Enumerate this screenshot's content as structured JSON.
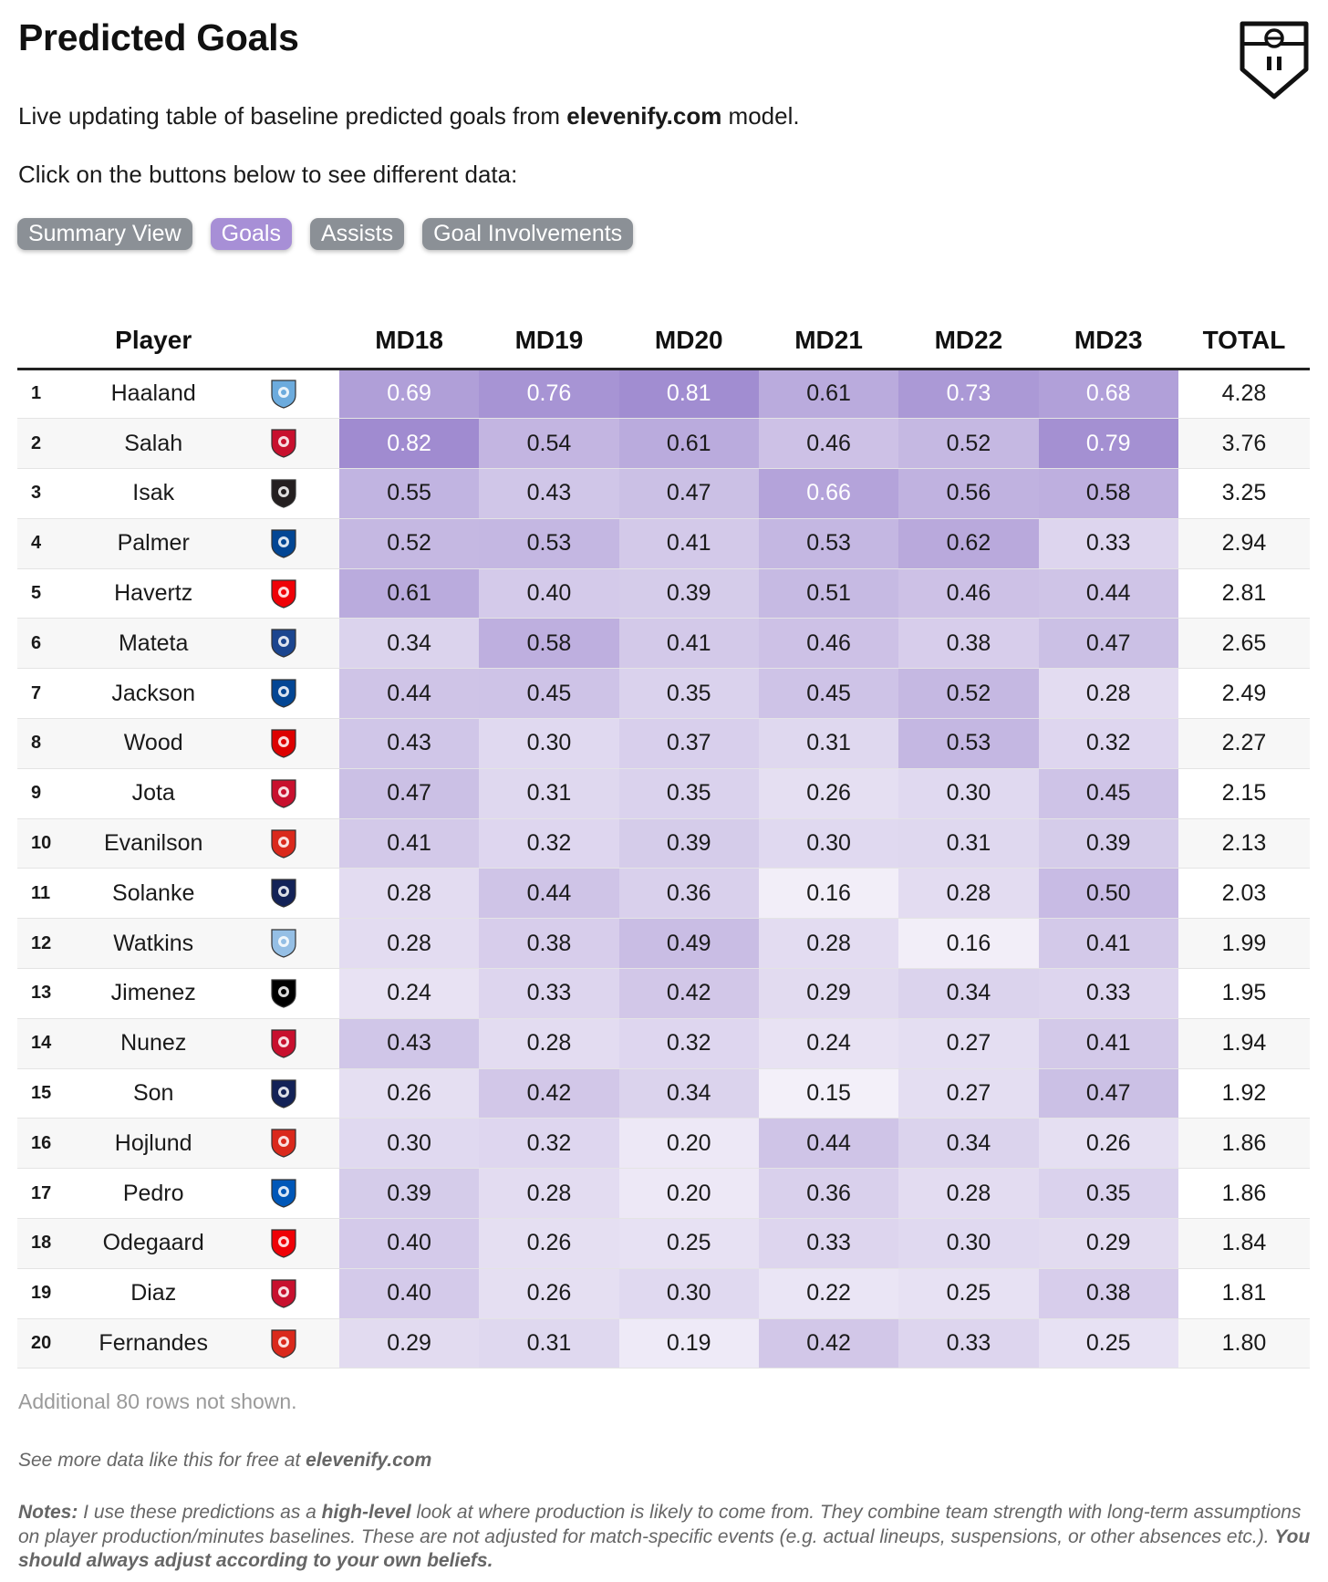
{
  "title": "Predicted Goals",
  "intro": {
    "before": "Live updating table of baseline predicted goals from ",
    "site": "elevenify.com",
    "after": " model."
  },
  "instruction": "Click on the buttons below to see different data:",
  "buttons": [
    {
      "label": "Summary View",
      "active": false
    },
    {
      "label": "Goals",
      "active": true
    },
    {
      "label": "Assists",
      "active": false
    },
    {
      "label": "Goal Involvements",
      "active": false
    }
  ],
  "columns": [
    "",
    "Player",
    "",
    "MD18",
    "MD19",
    "MD20",
    "MD21",
    "MD22",
    "MD23",
    "TOTAL"
  ],
  "rows": [
    {
      "rank": "1",
      "player": "Haaland",
      "club": "Manchester City",
      "crest_color": "#6cabdd",
      "crest_icon": "mancity-crest-icon",
      "md": [
        "0.69",
        "0.76",
        "0.81",
        "0.61",
        "0.73",
        "0.68"
      ],
      "total": "4.28"
    },
    {
      "rank": "2",
      "player": "Salah",
      "club": "Liverpool",
      "crest_color": "#c8102e",
      "crest_icon": "liverpool-crest-icon",
      "md": [
        "0.82",
        "0.54",
        "0.61",
        "0.46",
        "0.52",
        "0.79"
      ],
      "total": "3.76"
    },
    {
      "rank": "3",
      "player": "Isak",
      "club": "Newcastle",
      "crest_color": "#241f20",
      "crest_icon": "newcastle-crest-icon",
      "md": [
        "0.55",
        "0.43",
        "0.47",
        "0.66",
        "0.56",
        "0.58"
      ],
      "total": "3.25"
    },
    {
      "rank": "4",
      "player": "Palmer",
      "club": "Chelsea",
      "crest_color": "#034694",
      "crest_icon": "chelsea-crest-icon",
      "md": [
        "0.52",
        "0.53",
        "0.41",
        "0.53",
        "0.62",
        "0.33"
      ],
      "total": "2.94"
    },
    {
      "rank": "5",
      "player": "Havertz",
      "club": "Arsenal",
      "crest_color": "#ef0107",
      "crest_icon": "arsenal-crest-icon",
      "md": [
        "0.61",
        "0.40",
        "0.39",
        "0.51",
        "0.46",
        "0.44"
      ],
      "total": "2.81"
    },
    {
      "rank": "6",
      "player": "Mateta",
      "club": "Crystal Palace",
      "crest_color": "#1b458f",
      "crest_icon": "crystalpalace-crest-icon",
      "md": [
        "0.34",
        "0.58",
        "0.41",
        "0.46",
        "0.38",
        "0.47"
      ],
      "total": "2.65"
    },
    {
      "rank": "7",
      "player": "Jackson",
      "club": "Chelsea",
      "crest_color": "#034694",
      "crest_icon": "chelsea-crest-icon",
      "md": [
        "0.44",
        "0.45",
        "0.35",
        "0.45",
        "0.52",
        "0.28"
      ],
      "total": "2.49"
    },
    {
      "rank": "8",
      "player": "Wood",
      "club": "Nottingham Forest",
      "crest_color": "#dd0000",
      "crest_icon": "forest-crest-icon",
      "md": [
        "0.43",
        "0.30",
        "0.37",
        "0.31",
        "0.53",
        "0.32"
      ],
      "total": "2.27"
    },
    {
      "rank": "9",
      "player": "Jota",
      "club": "Liverpool",
      "crest_color": "#c8102e",
      "crest_icon": "liverpool-crest-icon",
      "md": [
        "0.47",
        "0.31",
        "0.35",
        "0.26",
        "0.30",
        "0.45"
      ],
      "total": "2.15"
    },
    {
      "rank": "10",
      "player": "Evanilson",
      "club": "Bournemouth",
      "crest_color": "#da291c",
      "crest_icon": "bournemouth-crest-icon",
      "md": [
        "0.41",
        "0.32",
        "0.39",
        "0.30",
        "0.31",
        "0.39"
      ],
      "total": "2.13"
    },
    {
      "rank": "11",
      "player": "Solanke",
      "club": "Tottenham",
      "crest_color": "#132257",
      "crest_icon": "tottenham-crest-icon",
      "md": [
        "0.28",
        "0.44",
        "0.36",
        "0.16",
        "0.28",
        "0.50"
      ],
      "total": "2.03"
    },
    {
      "rank": "12",
      "player": "Watkins",
      "club": "Aston Villa",
      "crest_color": "#95bfe5",
      "crest_icon": "astonvilla-crest-icon",
      "md": [
        "0.28",
        "0.38",
        "0.49",
        "0.28",
        "0.16",
        "0.41"
      ],
      "total": "1.99"
    },
    {
      "rank": "13",
      "player": "Jimenez",
      "club": "Fulham",
      "crest_color": "#000000",
      "crest_icon": "fulham-crest-icon",
      "md": [
        "0.24",
        "0.33",
        "0.42",
        "0.29",
        "0.34",
        "0.33"
      ],
      "total": "1.95"
    },
    {
      "rank": "14",
      "player": "Nunez",
      "club": "Liverpool",
      "crest_color": "#c8102e",
      "crest_icon": "liverpool-crest-icon",
      "md": [
        "0.43",
        "0.28",
        "0.32",
        "0.24",
        "0.27",
        "0.41"
      ],
      "total": "1.94"
    },
    {
      "rank": "15",
      "player": "Son",
      "club": "Tottenham",
      "crest_color": "#132257",
      "crest_icon": "tottenham-crest-icon",
      "md": [
        "0.26",
        "0.42",
        "0.34",
        "0.15",
        "0.27",
        "0.47"
      ],
      "total": "1.92"
    },
    {
      "rank": "16",
      "player": "Hojlund",
      "club": "Manchester United",
      "crest_color": "#da291c",
      "crest_icon": "manutd-crest-icon",
      "md": [
        "0.30",
        "0.32",
        "0.20",
        "0.44",
        "0.34",
        "0.26"
      ],
      "total": "1.86"
    },
    {
      "rank": "17",
      "player": "Pedro",
      "club": "Brighton",
      "crest_color": "#0057b8",
      "crest_icon": "brighton-crest-icon",
      "md": [
        "0.39",
        "0.28",
        "0.20",
        "0.36",
        "0.28",
        "0.35"
      ],
      "total": "1.86"
    },
    {
      "rank": "18",
      "player": "Odegaard",
      "club": "Arsenal",
      "crest_color": "#ef0107",
      "crest_icon": "arsenal-crest-icon",
      "md": [
        "0.40",
        "0.26",
        "0.25",
        "0.33",
        "0.30",
        "0.29"
      ],
      "total": "1.84"
    },
    {
      "rank": "19",
      "player": "Diaz",
      "club": "Liverpool",
      "crest_color": "#c8102e",
      "crest_icon": "liverpool-crest-icon",
      "md": [
        "0.40",
        "0.26",
        "0.30",
        "0.22",
        "0.25",
        "0.38"
      ],
      "total": "1.81"
    },
    {
      "rank": "20",
      "player": "Fernandes",
      "club": "Manchester United",
      "crest_color": "#da291c",
      "crest_icon": "manutd-crest-icon",
      "md": [
        "0.29",
        "0.31",
        "0.19",
        "0.42",
        "0.33",
        "0.25"
      ],
      "total": "1.80"
    }
  ],
  "more_rows": "Additional 80 rows not shown.",
  "footer": {
    "see_more": "See more data like this for free at ",
    "site": "elevenify.com"
  },
  "notes": {
    "label": "Notes:",
    "text1": " I use these predictions as a ",
    "emph": "high-level",
    "text2": " look at where production is likely to come from. They combine team strength with long-term assumptions on player production/minutes baselines. These are not adjusted for match-specific events (e.g. actual lineups, suspensions, or other absences etc.). ",
    "closing": "You should always adjust according to your own beliefs."
  },
  "colors": {
    "heat_low": "#f3f0f9",
    "heat_high": "#a08bd0",
    "button_active": "#a78fd6",
    "button_inactive": "#8b9096"
  },
  "logo_icon": "elevenify-shield-icon"
}
